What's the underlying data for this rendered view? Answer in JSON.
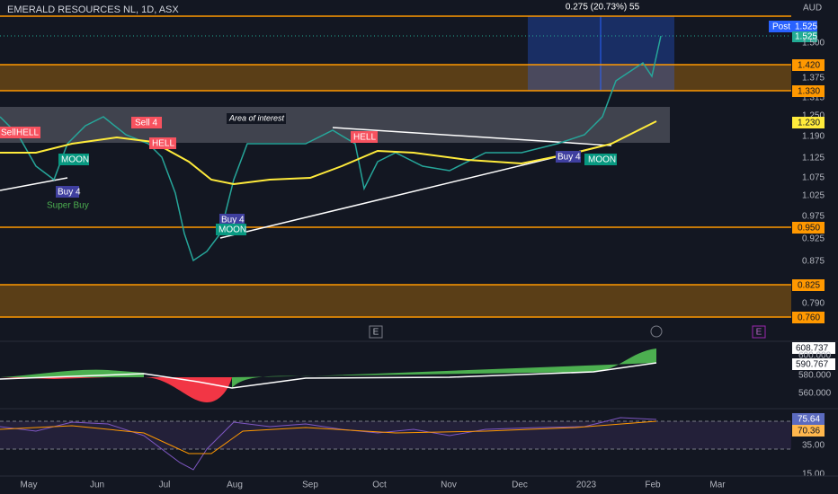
{
  "header": {
    "title": "EMERALD RESOURCES NL, 1D, ASX",
    "currency": "AUD"
  },
  "measure": "0.275 (20.73%) 55",
  "price_axis": {
    "post": "Post",
    "post_price": "1.525",
    "last": "1.525",
    "ticks": [
      "1.500",
      "1.375",
      "1.315",
      "1.250",
      "1.190",
      "1.125",
      "1.075",
      "1.025",
      "0.975",
      "0.925",
      "0.875",
      "0.790"
    ],
    "levels": [
      "1.420",
      "1.330",
      "0.950",
      "0.825",
      "0.760"
    ],
    "ma": "1.230"
  },
  "annotations": [
    "Sell 4",
    "HELL",
    "MOON",
    "Buy 4",
    "Super Buy",
    "HELL",
    "Buy 4",
    "MOON",
    "Area of interest",
    "HELL",
    "Buy 4",
    "MOON",
    "Sell"
  ],
  "indicator_axis": {
    "value": "608.737",
    "signal": "590.767",
    "ticks": [
      "600.000",
      "580.000",
      "560.000"
    ]
  },
  "rsi_axis": {
    "value": "75.64",
    "signal": "70.36",
    "ticks": [
      "35.00",
      "15.00"
    ]
  },
  "time_axis": [
    "May",
    "Jun",
    "Jul",
    "Aug",
    "Sep",
    "Oct",
    "Nov",
    "Dec",
    "2023",
    "Feb",
    "Mar"
  ],
  "events": [
    "E",
    "E"
  ]
}
